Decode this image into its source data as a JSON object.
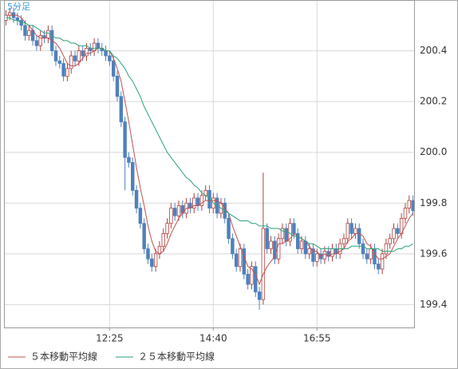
{
  "chart_data": {
    "type": "candlestick",
    "title": "5分足",
    "categories": [
      null,
      null,
      null,
      null,
      null,
      null,
      null,
      null,
      null,
      null,
      null,
      null,
      null,
      null,
      null,
      null,
      null,
      null,
      null,
      null,
      null,
      null,
      null,
      null,
      null,
      null,
      null,
      "12:25",
      null,
      null,
      null,
      null,
      null,
      null,
      null,
      null,
      null,
      null,
      null,
      null,
      null,
      null,
      null,
      null,
      null,
      null,
      null,
      null,
      null,
      null,
      null,
      null,
      null,
      null,
      "14:40",
      null,
      null,
      null,
      null,
      null,
      null,
      null,
      null,
      null,
      null,
      null,
      null,
      null,
      null,
      null,
      null,
      null,
      null,
      null,
      null,
      null,
      null,
      null,
      null,
      null,
      null,
      "16:55",
      null,
      null,
      null,
      null,
      null,
      null,
      null,
      null,
      null,
      null,
      null,
      null,
      null,
      null,
      null,
      null,
      null,
      null,
      null,
      null,
      null,
      null,
      null,
      null,
      null
    ],
    "open": [
      200.52,
      200.54,
      200.55,
      200.53,
      200.52,
      200.5,
      200.46,
      200.48,
      200.44,
      200.42,
      200.46,
      200.45,
      200.48,
      200.4,
      200.36,
      200.35,
      200.3,
      200.33,
      200.38,
      200.36,
      200.4,
      200.38,
      200.41,
      200.4,
      200.43,
      200.41,
      200.4,
      200.38,
      200.36,
      200.3,
      200.22,
      200.12,
      199.98,
      199.96,
      199.85,
      199.78,
      199.72,
      199.62,
      199.58,
      199.55,
      199.6,
      199.63,
      199.68,
      199.72,
      199.78,
      199.75,
      199.79,
      199.76,
      199.8,
      199.78,
      199.82,
      199.79,
      199.83,
      199.85,
      199.78,
      199.82,
      199.76,
      199.8,
      199.74,
      199.66,
      199.6,
      199.55,
      199.62,
      199.52,
      199.48,
      199.55,
      199.45,
      199.42,
      199.7,
      199.62,
      199.65,
      199.58,
      199.66,
      199.7,
      199.65,
      199.72,
      199.68,
      199.62,
      199.65,
      199.6,
      199.62,
      199.57,
      199.6,
      199.58,
      199.61,
      199.59,
      199.62,
      199.6,
      199.64,
      199.66,
      199.72,
      199.68,
      199.7,
      199.64,
      199.6,
      199.58,
      199.62,
      199.56,
      199.54,
      199.6,
      199.64,
      199.66,
      199.7,
      199.68,
      199.74,
      199.78,
      199.81
    ],
    "high": [
      200.56,
      200.57,
      200.57,
      200.55,
      200.54,
      200.52,
      200.5,
      200.5,
      200.46,
      200.48,
      200.48,
      200.5,
      200.5,
      200.42,
      200.38,
      200.37,
      200.35,
      200.4,
      200.4,
      200.42,
      200.42,
      200.43,
      200.43,
      200.45,
      200.45,
      200.43,
      200.42,
      200.4,
      200.38,
      200.32,
      200.24,
      200.14,
      200.0,
      199.98,
      199.87,
      199.8,
      199.74,
      199.64,
      199.6,
      199.62,
      199.65,
      199.7,
      199.74,
      199.8,
      199.8,
      199.81,
      199.81,
      199.82,
      199.82,
      199.84,
      199.84,
      199.85,
      199.87,
      199.87,
      199.84,
      199.84,
      199.82,
      199.82,
      199.76,
      199.68,
      199.62,
      199.64,
      199.64,
      199.54,
      199.57,
      199.57,
      199.47,
      199.92,
      199.72,
      199.67,
      199.67,
      199.68,
      199.72,
      199.72,
      199.74,
      199.74,
      199.7,
      199.67,
      199.67,
      199.64,
      199.64,
      199.62,
      199.62,
      199.63,
      199.63,
      199.64,
      199.64,
      199.66,
      199.68,
      199.74,
      199.74,
      199.72,
      199.72,
      199.66,
      199.62,
      199.64,
      199.64,
      199.58,
      199.62,
      199.66,
      199.68,
      199.72,
      199.72,
      199.76,
      199.8,
      199.83,
      199.83
    ],
    "low": [
      200.5,
      200.52,
      200.51,
      200.5,
      200.48,
      200.44,
      200.44,
      200.42,
      200.4,
      200.4,
      200.43,
      200.43,
      200.38,
      200.34,
      200.33,
      200.28,
      200.28,
      200.31,
      200.34,
      200.34,
      200.36,
      200.36,
      200.38,
      200.38,
      200.39,
      200.38,
      200.36,
      200.34,
      200.28,
      200.2,
      200.1,
      199.85,
      199.94,
      199.83,
      199.76,
      199.7,
      199.6,
      199.56,
      199.53,
      199.53,
      199.58,
      199.61,
      199.66,
      199.7,
      199.73,
      199.73,
      199.74,
      199.74,
      199.76,
      199.76,
      199.77,
      199.77,
      199.81,
      199.76,
      199.76,
      199.74,
      199.74,
      199.72,
      199.64,
      199.58,
      199.53,
      199.53,
      199.5,
      199.46,
      199.46,
      199.43,
      199.38,
      199.4,
      199.6,
      199.6,
      199.56,
      199.56,
      199.64,
      199.63,
      199.63,
      199.66,
      199.6,
      199.6,
      199.58,
      199.58,
      199.55,
      199.55,
      199.56,
      199.56,
      199.57,
      199.57,
      199.58,
      199.58,
      199.62,
      199.64,
      199.66,
      199.66,
      199.62,
      199.58,
      199.56,
      199.56,
      199.54,
      199.52,
      199.52,
      199.58,
      199.62,
      199.64,
      199.66,
      199.66,
      199.72,
      199.76,
      199.75
    ],
    "close": [
      200.54,
      200.55,
      200.53,
      200.52,
      200.5,
      200.46,
      200.48,
      200.44,
      200.42,
      200.46,
      200.45,
      200.48,
      200.4,
      200.36,
      200.35,
      200.3,
      200.33,
      200.38,
      200.36,
      200.4,
      200.38,
      200.41,
      200.4,
      200.43,
      200.41,
      200.4,
      200.38,
      200.36,
      200.3,
      200.22,
      200.12,
      199.98,
      199.96,
      199.85,
      199.78,
      199.72,
      199.62,
      199.58,
      199.55,
      199.6,
      199.63,
      199.68,
      199.72,
      199.78,
      199.75,
      199.79,
      199.76,
      199.8,
      199.78,
      199.82,
      199.79,
      199.83,
      199.85,
      199.78,
      199.82,
      199.76,
      199.8,
      199.74,
      199.66,
      199.6,
      199.55,
      199.62,
      199.52,
      199.48,
      199.55,
      199.45,
      199.42,
      199.7,
      199.62,
      199.65,
      199.58,
      199.66,
      199.7,
      199.65,
      199.72,
      199.68,
      199.62,
      199.65,
      199.6,
      199.62,
      199.57,
      199.6,
      199.58,
      199.61,
      199.59,
      199.62,
      199.6,
      199.64,
      199.66,
      199.72,
      199.68,
      199.7,
      199.64,
      199.6,
      199.58,
      199.62,
      199.56,
      199.54,
      199.6,
      199.64,
      199.66,
      199.7,
      199.68,
      199.74,
      199.78,
      199.81,
      199.77
    ],
    "up_color": "#b0403c",
    "down_color": "#4f81bd",
    "series": [
      {
        "name": "５本移動平均線",
        "color": "#c0504d",
        "values": [
          200.54,
          200.54,
          200.54,
          200.54,
          200.53,
          200.51,
          200.5,
          200.48,
          200.46,
          200.45,
          200.45,
          200.45,
          200.44,
          200.43,
          200.41,
          200.38,
          200.35,
          200.34,
          200.34,
          200.35,
          200.37,
          200.39,
          200.39,
          200.4,
          200.41,
          200.41,
          200.4,
          200.4,
          200.37,
          200.33,
          200.28,
          200.2,
          200.12,
          200.03,
          199.94,
          199.86,
          199.79,
          199.71,
          199.65,
          199.61,
          199.6,
          199.61,
          199.64,
          199.68,
          199.71,
          199.74,
          199.76,
          199.78,
          199.78,
          199.79,
          199.79,
          199.8,
          199.81,
          199.81,
          199.81,
          199.81,
          199.8,
          199.78,
          199.76,
          199.71,
          199.67,
          199.63,
          199.59,
          199.55,
          199.54,
          199.52,
          199.48,
          199.52,
          199.55,
          199.57,
          199.59,
          199.64,
          199.64,
          199.65,
          199.66,
          199.68,
          199.67,
          199.66,
          199.65,
          199.63,
          199.61,
          199.61,
          199.59,
          199.6,
          199.59,
          199.6,
          199.6,
          199.61,
          199.62,
          199.65,
          199.66,
          199.68,
          199.68,
          199.67,
          199.64,
          199.63,
          199.6,
          199.58,
          199.58,
          199.59,
          199.6,
          199.63,
          199.66,
          199.68,
          199.71,
          199.74,
          199.76
        ]
      },
      {
        "name": "２５本移動平均線",
        "color": "#2aa27a",
        "values": [
          200.53,
          200.53,
          200.52,
          200.52,
          200.51,
          200.51,
          200.5,
          200.5,
          200.49,
          200.48,
          200.47,
          200.47,
          200.46,
          200.45,
          200.45,
          200.44,
          200.44,
          200.43,
          200.43,
          200.42,
          200.42,
          200.42,
          200.41,
          200.41,
          200.41,
          200.41,
          200.4,
          200.4,
          200.38,
          200.37,
          200.35,
          200.33,
          200.3,
          200.28,
          200.25,
          200.22,
          200.18,
          200.15,
          200.12,
          200.09,
          200.06,
          200.03,
          200.0,
          199.98,
          199.96,
          199.94,
          199.92,
          199.9,
          199.89,
          199.87,
          199.86,
          199.84,
          199.83,
          199.82,
          199.8,
          199.79,
          199.78,
          199.77,
          199.76,
          199.75,
          199.74,
          199.73,
          199.73,
          199.73,
          199.72,
          199.72,
          199.71,
          199.71,
          199.71,
          199.7,
          199.7,
          199.7,
          199.69,
          199.69,
          199.68,
          199.67,
          199.67,
          199.66,
          199.65,
          199.64,
          199.64,
          199.63,
          199.62,
          199.62,
          199.62,
          199.62,
          199.62,
          199.62,
          199.62,
          199.62,
          199.63,
          199.63,
          199.63,
          199.63,
          199.62,
          199.62,
          199.62,
          199.62,
          199.61,
          199.61,
          199.61,
          199.61,
          199.62,
          199.62,
          199.63,
          199.63,
          199.64
        ]
      }
    ],
    "ylim": [
      199.31,
      200.6
    ],
    "yticks": [
      199.4,
      199.6,
      199.8,
      {
        "value": 200,
        "label": "200.0"
      },
      200.2,
      200.4
    ],
    "grid": true
  }
}
